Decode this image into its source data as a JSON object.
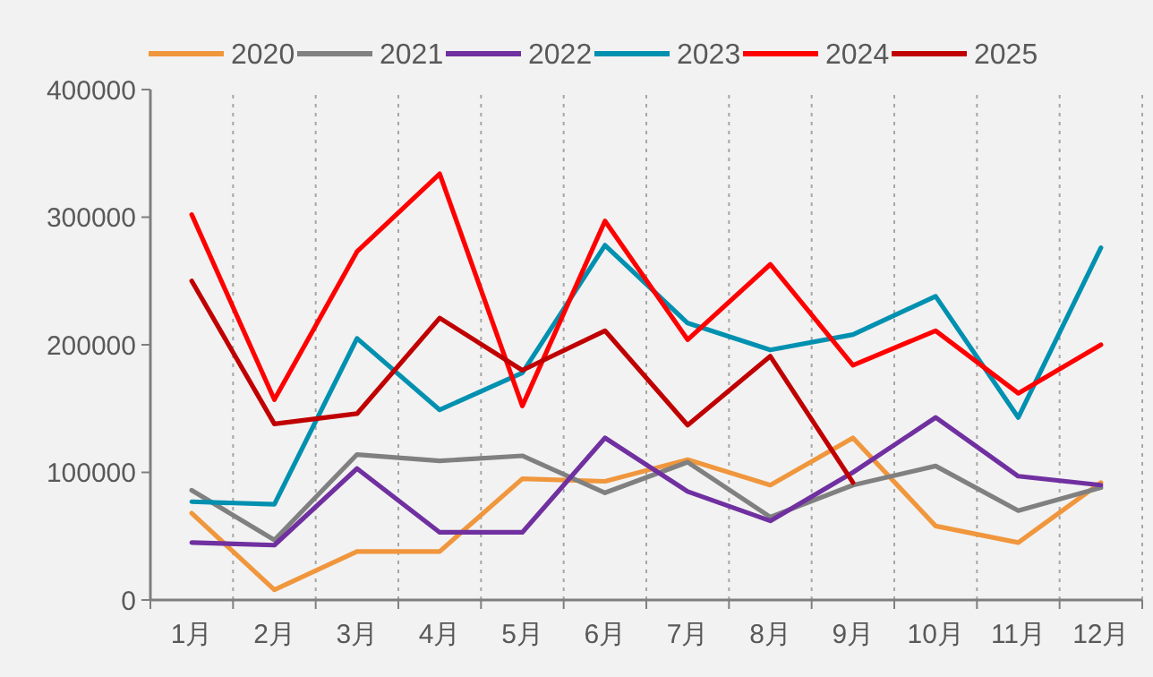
{
  "chart_data": {
    "type": "line",
    "categories": [
      "1月",
      "2月",
      "3月",
      "4月",
      "5月",
      "6月",
      "7月",
      "8月",
      "9月",
      "10月",
      "11月",
      "12月"
    ],
    "ylim": [
      0,
      400000
    ],
    "yticks": [
      0,
      100000,
      200000,
      300000,
      400000
    ],
    "grid": "x",
    "legend": "top",
    "marker": "none",
    "line_style": "solid",
    "series": [
      {
        "name": "2020",
        "color": "#f0963c",
        "values": [
          68000,
          8000,
          38000,
          38000,
          95000,
          93000,
          110000,
          90000,
          127000,
          58000,
          45000,
          92000
        ]
      },
      {
        "name": "2021",
        "color": "#808080",
        "values": [
          86000,
          47000,
          114000,
          109000,
          113000,
          84000,
          108000,
          65000,
          90000,
          105000,
          70000,
          88000
        ]
      },
      {
        "name": "2022",
        "color": "#7030a0",
        "values": [
          45000,
          43000,
          103000,
          53000,
          53000,
          127000,
          85000,
          62000,
          100000,
          143000,
          97000,
          90000
        ]
      },
      {
        "name": "2023",
        "color": "#0090b0",
        "values": [
          77000,
          75000,
          205000,
          149000,
          178000,
          278000,
          217000,
          196000,
          208000,
          238000,
          143000,
          276000
        ]
      },
      {
        "name": "2024",
        "color": "#ff0000",
        "values": [
          302000,
          157000,
          273000,
          334000,
          152000,
          297000,
          204000,
          263000,
          184000,
          211000,
          162000,
          200000
        ]
      },
      {
        "name": "2025",
        "color": "#c00000",
        "values": [
          250000,
          138000,
          146000,
          221000,
          180000,
          211000,
          137000,
          191000,
          92000,
          null,
          null,
          null
        ]
      }
    ]
  }
}
